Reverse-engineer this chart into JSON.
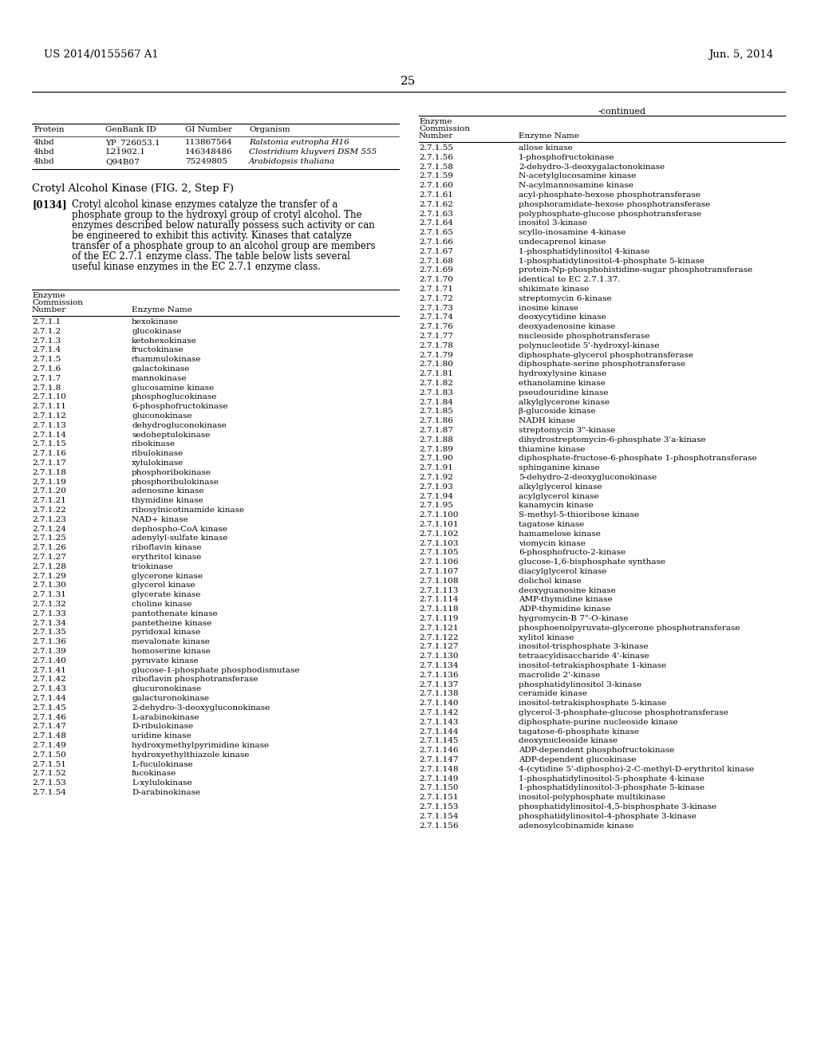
{
  "header_left": "US 2014/0155567 A1",
  "header_right": "Jun. 5, 2014",
  "page_number": "25",
  "continued_label": "-continued",
  "bg_color": "#ffffff",
  "top_table": {
    "headers": [
      "Protein",
      "GenBank ID",
      "GI Number",
      "Organism"
    ],
    "rows": [
      [
        "4hbd",
        "YP_726053.1",
        "113867564",
        "Ralstonia eutropha H16"
      ],
      [
        "4hbd",
        "L21902.1",
        "146348486",
        "Clostridium kluyveri DSM 555"
      ],
      [
        "4hbd",
        "Q94B07",
        "75249805",
        "Arabidopsis thaliana"
      ]
    ]
  },
  "section_title": "Crotyl Alcohol Kinase (FIG. 2, Step F)",
  "paragraph_tag": "[0134]",
  "paragraph_text": "Crotyl alcohol kinase enzymes catalyze the transfer of a phosphate group to the hydroxyl group of crotyl alcohol. The enzymes described below naturally possess such activity or can be engineered to exhibit this activity. Kinases that catalyze transfer of a phosphate group to an alcohol group are members of the EC 2.7.1 enzyme class. The table below lists several useful kinase enzymes in the EC 2.7.1 enzyme class.",
  "left_table_header": [
    "Enzyme\nCommission\nNumber",
    "Enzyme Name"
  ],
  "left_table_rows": [
    [
      "2.7.1.1",
      "hexokinase"
    ],
    [
      "2.7.1.2",
      "glucokinase"
    ],
    [
      "2.7.1.3",
      "ketohexokinase"
    ],
    [
      "2.7.1.4",
      "fructokinase"
    ],
    [
      "2.7.1.5",
      "rhammulokinase"
    ],
    [
      "2.7.1.6",
      "galactokinase"
    ],
    [
      "2.7.1.7",
      "mannokinase"
    ],
    [
      "2.7.1.8",
      "glucosamine kinase"
    ],
    [
      "2.7.1.10",
      "phosphoglucokinase"
    ],
    [
      "2.7.1.11",
      "6-phosphofructokinase"
    ],
    [
      "2.7.1.12",
      "gluconokinase"
    ],
    [
      "2.7.1.13",
      "dehydrogluconokinase"
    ],
    [
      "2.7.1.14",
      "sedoheptulokinase"
    ],
    [
      "2.7.1.15",
      "ribokinase"
    ],
    [
      "2.7.1.16",
      "ribulokinase"
    ],
    [
      "2.7.1.17",
      "xylulokinase"
    ],
    [
      "2.7.1.18",
      "phosphoribokinase"
    ],
    [
      "2.7.1.19",
      "phosphoribulokinase"
    ],
    [
      "2.7.1.20",
      "adenosine kinase"
    ],
    [
      "2.7.1.21",
      "thymidine kinase"
    ],
    [
      "2.7.1.22",
      "ribosylnicotinamide kinase"
    ],
    [
      "2.7.1.23",
      "NAD+ kinase"
    ],
    [
      "2.7.1.24",
      "dephospho-CoA kinase"
    ],
    [
      "2.7.1.25",
      "adenylyl-sulfate kinase"
    ],
    [
      "2.7.1.26",
      "riboflavin kinase"
    ],
    [
      "2.7.1.27",
      "erythritol kinase"
    ],
    [
      "2.7.1.28",
      "triokinase"
    ],
    [
      "2.7.1.29",
      "glycerone kinase"
    ],
    [
      "2.7.1.30",
      "glycerol kinase"
    ],
    [
      "2.7.1.31",
      "glycerate kinase"
    ],
    [
      "2.7.1.32",
      "choline kinase"
    ],
    [
      "2.7.1.33",
      "pantothenate kinase"
    ],
    [
      "2.7.1.34",
      "pantetheine kinase"
    ],
    [
      "2.7.1.35",
      "pyridoxal kinase"
    ],
    [
      "2.7.1.36",
      "mevalonate kinase"
    ],
    [
      "2.7.1.39",
      "homoserine kinase"
    ],
    [
      "2.7.1.40",
      "pyruvate kinase"
    ],
    [
      "2.7.1.41",
      "glucose-1-phosphate phosphodismutase"
    ],
    [
      "2.7.1.42",
      "riboflavin phosphotransferase"
    ],
    [
      "2.7.1.43",
      "glucuronokinase"
    ],
    [
      "2.7.1.44",
      "galacturonokinase"
    ],
    [
      "2.7.1.45",
      "2-dehydro-3-deoxygluconokinase"
    ],
    [
      "2.7.1.46",
      "L-arabinokinase"
    ],
    [
      "2.7.1.47",
      "D-ribulokinase"
    ],
    [
      "2.7.1.48",
      "uridine kinase"
    ],
    [
      "2.7.1.49",
      "hydroxymethylpyrimidine kinase"
    ],
    [
      "2.7.1.50",
      "hydroxyethylthiazole kinase"
    ],
    [
      "2.7.1.51",
      "L-fuculokinase"
    ],
    [
      "2.7.1.52",
      "fucokinase"
    ],
    [
      "2.7.1.53",
      "L-xylulokinase"
    ],
    [
      "2.7.1.54",
      "D-arabinokinase"
    ]
  ],
  "right_table_header": [
    "Enzyme\nCommission\nNumber",
    "Enzyme Name"
  ],
  "right_table_rows": [
    [
      "2.7.1.55",
      "allose kinase"
    ],
    [
      "2.7.1.56",
      "1-phosphofructokinase"
    ],
    [
      "2.7.1.58",
      "2-dehydro-3-deoxygalactonokinase"
    ],
    [
      "2.7.1.59",
      "N-acetylglucosamine kinase"
    ],
    [
      "2.7.1.60",
      "N-acylmannosamine kinase"
    ],
    [
      "2.7.1.61",
      "acyl-phosphate-hexose phosphotransferase"
    ],
    [
      "2.7.1.62",
      "phosphoramidate-hexose phosphotransferase"
    ],
    [
      "2.7.1.63",
      "polyphosphate-glucose phosphotransferase"
    ],
    [
      "2.7.1.64",
      "inositol 3-kinase"
    ],
    [
      "2.7.1.65",
      "scyllo-inosamine 4-kinase"
    ],
    [
      "2.7.1.66",
      "undecaprenol kinase"
    ],
    [
      "2.7.1.67",
      "1-phosphatidylinositol 4-kinase"
    ],
    [
      "2.7.1.68",
      "1-phosphatidylinositol-4-phosphate 5-kinase"
    ],
    [
      "2.7.1.69",
      "protein-Np-phosphohistidine-sugar phosphotransferase"
    ],
    [
      "2.7.1.70",
      "identical to EC 2.7.1.37."
    ],
    [
      "2.7.1.71",
      "shikimate kinase"
    ],
    [
      "2.7.1.72",
      "streptomycin 6-kinase"
    ],
    [
      "2.7.1.73",
      "inosine kinase"
    ],
    [
      "2.7.1.74",
      "deoxycytidine kinase"
    ],
    [
      "2.7.1.76",
      "deoxyadenosine kinase"
    ],
    [
      "2.7.1.77",
      "nucleoside phosphotransferase"
    ],
    [
      "2.7.1.78",
      "polynucleotide 5'-hydroxyl-kinase"
    ],
    [
      "2.7.1.79",
      "diphosphate-glycerol phosphotransferase"
    ],
    [
      "2.7.1.80",
      "diphosphate-serine phosphotransferase"
    ],
    [
      "2.7.1.81",
      "hydroxylysine kinase"
    ],
    [
      "2.7.1.82",
      "ethanolamine kinase"
    ],
    [
      "2.7.1.83",
      "pseudouridine kinase"
    ],
    [
      "2.7.1.84",
      "alkylglycerone kinase"
    ],
    [
      "2.7.1.85",
      "β-glucoside kinase"
    ],
    [
      "2.7.1.86",
      "NADH kinase"
    ],
    [
      "2.7.1.87",
      "streptomycin 3\"-kinase"
    ],
    [
      "2.7.1.88",
      "dihydrostreptomycin-6-phosphate 3'a-kinase"
    ],
    [
      "2.7.1.89",
      "thiamine kinase"
    ],
    [
      "2.7.1.90",
      "diphosphate-fructose-6-phosphate 1-phosphotransferase"
    ],
    [
      "2.7.1.91",
      "sphinganine kinase"
    ],
    [
      "2.7.1.92",
      "5-dehydro-2-deoxygluconokinase"
    ],
    [
      "2.7.1.93",
      "alkylglycerol kinase"
    ],
    [
      "2.7.1.94",
      "acylglycerol kinase"
    ],
    [
      "2.7.1.95",
      "kanamycin kinase"
    ],
    [
      "2.7.1.100",
      "S-methyl-5-thioribose kinase"
    ],
    [
      "2.7.1.101",
      "tagatose kinase"
    ],
    [
      "2.7.1.102",
      "hamamelose kinase"
    ],
    [
      "2.7.1.103",
      "viomycin kinase"
    ],
    [
      "2.7.1.105",
      "6-phosphofructo-2-kinase"
    ],
    [
      "2.7.1.106",
      "glucose-1,6-bisphosphate synthase"
    ],
    [
      "2.7.1.107",
      "diacylglycerol kinase"
    ],
    [
      "2.7.1.108",
      "dolichol kinase"
    ],
    [
      "2.7.1.113",
      "deoxyguanosine kinase"
    ],
    [
      "2.7.1.114",
      "AMP-thymidine kinase"
    ],
    [
      "2.7.1.118",
      "ADP-thymidine kinase"
    ],
    [
      "2.7.1.119",
      "hygromycin-B 7\"-O-kinase"
    ],
    [
      "2.7.1.121",
      "phosphoenolpyruvate-glycerone phosphotransferase"
    ],
    [
      "2.7.1.122",
      "xylitol kinase"
    ],
    [
      "2.7.1.127",
      "inositol-trisphosphate 3-kinase"
    ],
    [
      "2.7.1.130",
      "tetraacyldisaccharide 4'-kinase"
    ],
    [
      "2.7.1.134",
      "inositol-tetrakisphosphate 1-kinase"
    ],
    [
      "2.7.1.136",
      "macrolide 2'-kinase"
    ],
    [
      "2.7.1.137",
      "phosphatidylinositol 3-kinase"
    ],
    [
      "2.7.1.138",
      "ceramide kinase"
    ],
    [
      "2.7.1.140",
      "inositol-tetrakisphosphate 5-kinase"
    ],
    [
      "2.7.1.142",
      "glycerol-3-phosphate-glucose phosphotransferase"
    ],
    [
      "2.7.1.143",
      "diphosphate-purine nucleoside kinase"
    ],
    [
      "2.7.1.144",
      "tagatose-6-phosphate kinase"
    ],
    [
      "2.7.1.145",
      "deoxynucleoside kinase"
    ],
    [
      "2.7.1.146",
      "ADP-dependent phosphofructokinase"
    ],
    [
      "2.7.1.147",
      "ADP-dependent glucokinase"
    ],
    [
      "2.7.1.148",
      "4-(cytidine 5'-diphospho)-2-C-methyl-D-erythritol kinase"
    ],
    [
      "2.7.1.149",
      "1-phosphatidylinositol-5-phosphate 4-kinase"
    ],
    [
      "2.7.1.150",
      "1-phosphatidylinositol-3-phosphate 5-kinase"
    ],
    [
      "2.7.1.151",
      "inositol-polyphosphate multikinase"
    ],
    [
      "2.7.1.153",
      "phosphatidylinositol-4,5-bisphosphate 3-kinase"
    ],
    [
      "2.7.1.154",
      "phosphatidylinositol-4-phosphate 3-kinase"
    ],
    [
      "2.7.1.156",
      "adenosylcobinamide kinase"
    ]
  ]
}
